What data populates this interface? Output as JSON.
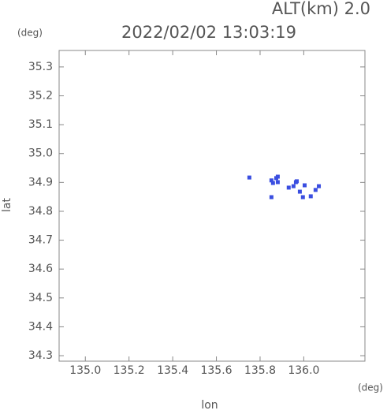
{
  "chart_data": {
    "type": "scatter",
    "title": "2022/02/02 13:03:19",
    "subtitle": "ALT(km) 2.0",
    "y_unit": "(deg)",
    "x_unit": "(deg)",
    "x_label": "lon",
    "y_label": "lat",
    "color": "#3a4ee0",
    "xlim": [
      134.88,
      136.28
    ],
    "ylim": [
      34.281,
      35.357
    ],
    "xticks": [
      {
        "value": 135,
        "label": "135.0"
      },
      135.2,
      135.4,
      135.6,
      135.8,
      {
        "value": 136,
        "label": "136.0"
      }
    ],
    "yticks": [
      34.3,
      34.4,
      34.5,
      34.6,
      34.7,
      34.8,
      34.9,
      {
        "value": 35,
        "label": "35.0"
      },
      35.1,
      35.2,
      35.3
    ],
    "x": [
      135.751,
      135.852,
      135.859,
      135.874,
      135.881,
      135.852,
      135.881,
      135.931,
      135.953,
      135.968,
      135.982,
      135.996,
      136.004,
      136.032,
      136.054,
      136.069,
      135.964
    ],
    "values": [
      34.917,
      34.907,
      34.898,
      34.915,
      34.92,
      34.849,
      34.901,
      34.882,
      34.887,
      34.904,
      34.868,
      34.849,
      34.89,
      34.852,
      34.874,
      34.887,
      34.901
    ]
  }
}
